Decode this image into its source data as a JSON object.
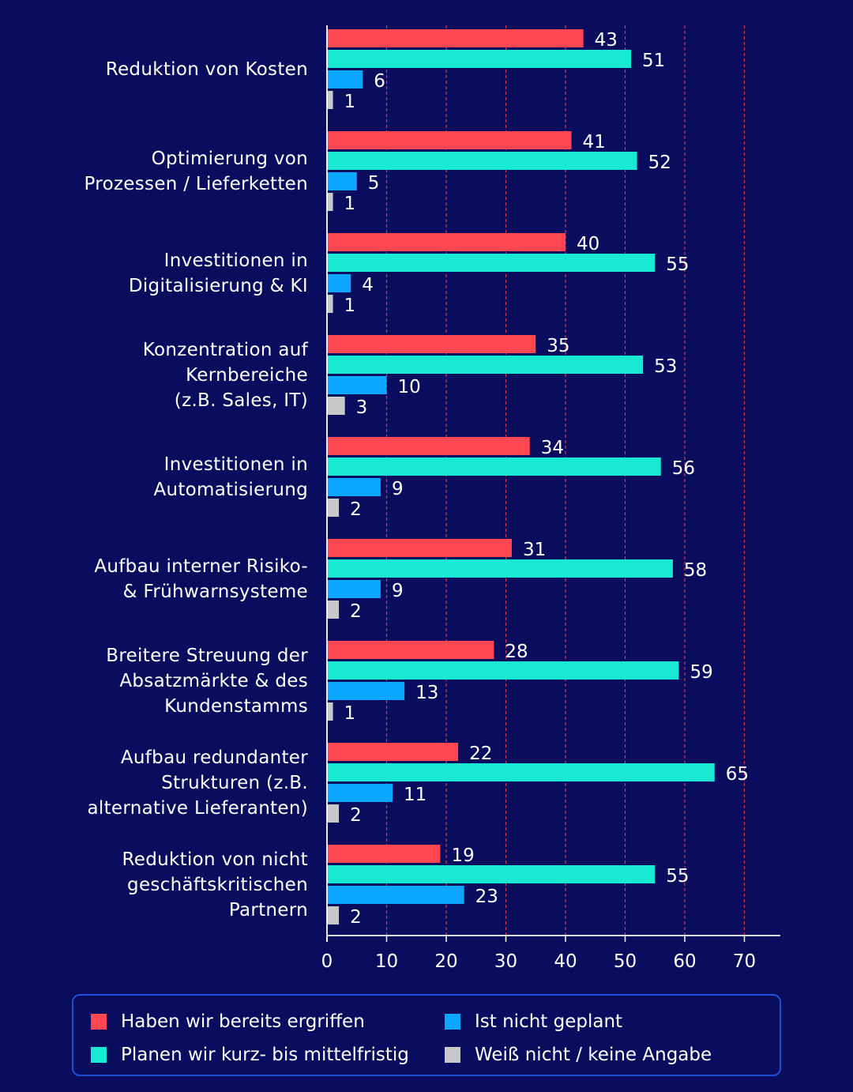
{
  "chart_data": {
    "type": "bar",
    "orientation": "horizontal",
    "categories": [
      [
        "Reduktion von Kosten"
      ],
      [
        "Optimierung von",
        "Prozessen / Lieferketten"
      ],
      [
        "Investitionen in",
        "Digitalisierung & KI"
      ],
      [
        "Konzentration auf",
        "Kernbereiche",
        "(z.B. Sales, IT)"
      ],
      [
        "Investitionen in",
        "Automatisierung"
      ],
      [
        "Aufbau interner Risiko-",
        "& Frühwarnsysteme"
      ],
      [
        "Breitere Streuung der",
        "Absatzmärkte & des",
        "Kundenstamms"
      ],
      [
        "Aufbau redundanter",
        "Strukturen (z.B.",
        "alternative Lieferanten)"
      ],
      [
        "Reduktion von nicht",
        "geschäftskritischen",
        "Partnern"
      ]
    ],
    "series": [
      {
        "name": "Haben wir bereits ergriffen",
        "color": "#ff4752",
        "values": [
          43,
          41,
          40,
          35,
          34,
          31,
          28,
          22,
          19
        ]
      },
      {
        "name": "Planen wir kurz- bis mittelfristig",
        "color": "#19e8d3",
        "values": [
          51,
          52,
          55,
          53,
          56,
          58,
          59,
          65,
          55
        ]
      },
      {
        "name": "Ist nicht geplant",
        "color": "#0aa6ff",
        "values": [
          6,
          5,
          4,
          10,
          9,
          9,
          13,
          11,
          23
        ]
      },
      {
        "name": "Weiß nicht / keine Angabe",
        "color": "#c8c8c8",
        "values": [
          1,
          1,
          1,
          3,
          2,
          2,
          1,
          2,
          2
        ]
      }
    ],
    "xticks": [
      "0",
      "10",
      "20",
      "30",
      "40",
      "50",
      "60",
      "70"
    ],
    "xlim": [
      0,
      77
    ],
    "gridlines": "dashed vertical",
    "legend_position": "bottom"
  }
}
